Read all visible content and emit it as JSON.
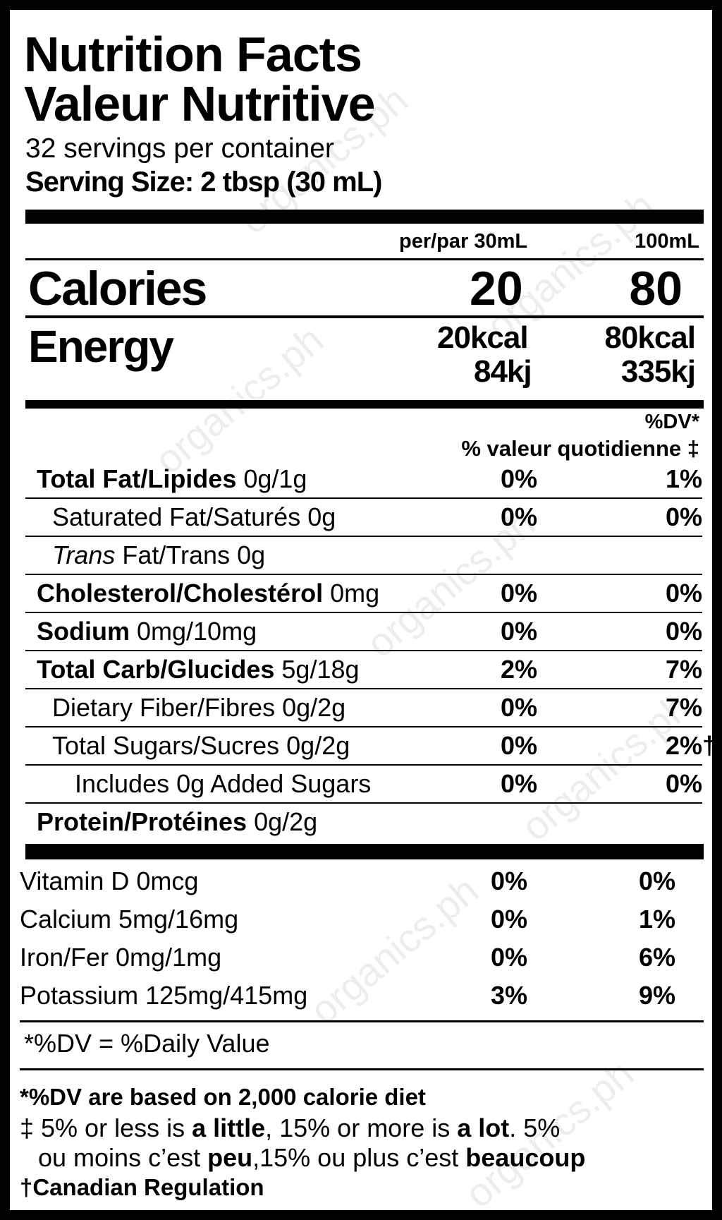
{
  "title_en": "Nutrition Facts",
  "title_fr": "Valeur Nutritive",
  "servings": "32 servings per container",
  "serving_size": "Serving Size: 2 tbsp (30 mL)",
  "col_header_1": "per/par 30mL",
  "col_header_2": "100mL",
  "calories": {
    "label": "Calories",
    "v1": "20",
    "v2": "80"
  },
  "energy": {
    "label": "Energy",
    "v1a": "20kcal",
    "v1b": "84kj",
    "v2a": "80kcal",
    "v2b": "335kj"
  },
  "dv_header_1": "%DV*",
  "dv_header_2": "% valeur quotidienne ‡",
  "nutrients": [
    {
      "bold": "Total Fat/Lipides",
      "rest": " 0g/1g",
      "v1": "0%",
      "v2": "1%"
    },
    {
      "bold": "",
      "rest": "Saturated Fat/Saturés 0g",
      "v1": "0%",
      "v2": "0%"
    },
    {
      "italic": "Trans",
      "rest": " Fat/Trans 0g",
      "v1": "",
      "v2": ""
    },
    {
      "bold": "Cholesterol/Cholestérol",
      "rest": " 0mg",
      "v1": "0%",
      "v2": "0%"
    },
    {
      "bold": "Sodium",
      "rest": " 0mg/10mg",
      "v1": "0%",
      "v2": "0%"
    },
    {
      "bold": "Total Carb/Glucides",
      "rest": " 5g/18g",
      "v1": "2%",
      "v2": "7%"
    },
    {
      "bold": "",
      "rest": "Dietary Fiber/Fibres 0g/2g",
      "v1": "0%",
      "v2": "7%"
    },
    {
      "bold": "",
      "rest": "Total Sugars/Sucres 0g/2g",
      "v1": "0%",
      "v2": "2%†"
    },
    {
      "bold": "",
      "rest": "Includes 0g Added Sugars",
      "v1": "0%",
      "v2": "0%"
    },
    {
      "bold": "Protein/Protéines",
      "rest": " 0g/2g",
      "v1": "",
      "v2": ""
    }
  ],
  "vitamins": [
    {
      "label": "Vitamin D 0mcg",
      "v1": "0%",
      "v2": "0%"
    },
    {
      "label": "Calcium 5mg/16mg",
      "v1": "0%",
      "v2": "1%"
    },
    {
      "label": "Iron/Fer 0mg/1mg",
      "v1": "0%",
      "v2": "6%"
    },
    {
      "label": "Potassium 125mg/415mg",
      "v1": "3%",
      "v2": "9%"
    }
  ],
  "dv_note": "*%DV = %Daily Value",
  "footnote_1": "*%DV are based on 2,000 calorie diet",
  "footnote_2": {
    "a": "‡ 5% or less is ",
    "b": "a little",
    "c": ", 15% or more is ",
    "d": "a lot",
    "e": ". 5%"
  },
  "footnote_3": {
    "a": "ou moins c’est ",
    "b": "peu",
    "c": ",15% ou plus c’est ",
    "d": "beaucoup"
  },
  "footnote_4": "†Canadian Regulation",
  "watermark": "organics.ph"
}
